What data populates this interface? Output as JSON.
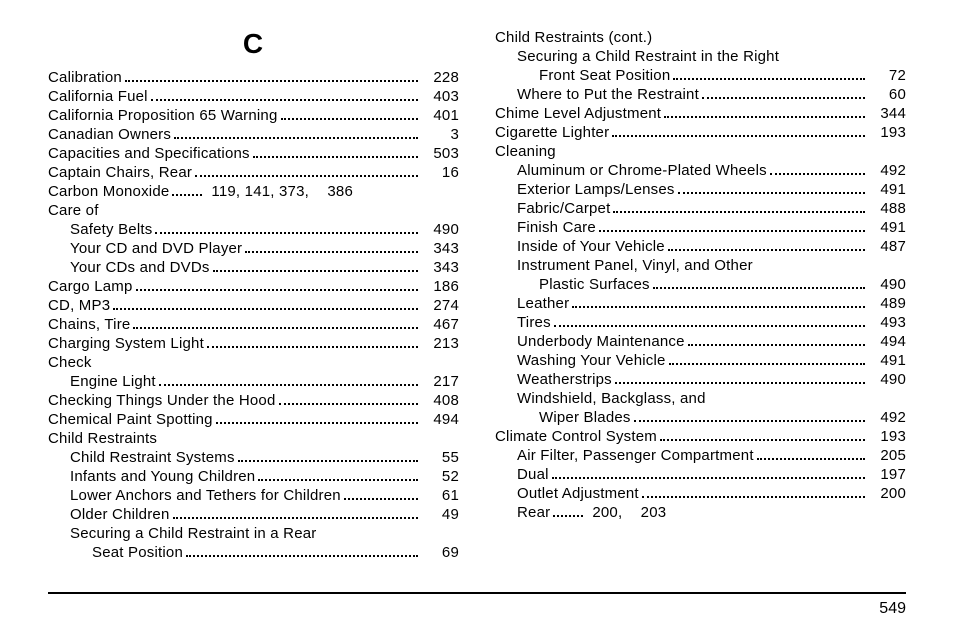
{
  "heading": "C",
  "page_number": "549",
  "left_column": [
    {
      "label": "Calibration",
      "page": "228",
      "indent": 0
    },
    {
      "label": "California Fuel",
      "page": "403",
      "indent": 0
    },
    {
      "label": "California Proposition 65 Warning",
      "page": "401",
      "indent": 0
    },
    {
      "label": "Canadian Owners",
      "page": "3",
      "indent": 0
    },
    {
      "label": "Capacities and Specifications",
      "page": "503",
      "indent": 0
    },
    {
      "label": "Captain Chairs, Rear",
      "page": "16",
      "indent": 0
    },
    {
      "label": "Carbon Monoxide",
      "page": "386",
      "pre_pages": "119,  141,  373,",
      "indent": 0,
      "multi": true
    },
    {
      "label": "Care of",
      "indent": 0,
      "no_page": true
    },
    {
      "label": "Safety Belts",
      "page": "490",
      "indent": 1
    },
    {
      "label": "Your CD and DVD Player",
      "page": "343",
      "indent": 1
    },
    {
      "label": "Your CDs and DVDs",
      "page": "343",
      "indent": 1
    },
    {
      "label": "Cargo Lamp",
      "page": "186",
      "indent": 0
    },
    {
      "label": "CD, MP3",
      "page": "274",
      "indent": 0
    },
    {
      "label": "Chains, Tire",
      "page": "467",
      "indent": 0
    },
    {
      "label": "Charging System Light",
      "page": "213",
      "indent": 0
    },
    {
      "label": "Check",
      "indent": 0,
      "no_page": true
    },
    {
      "label": "Engine Light",
      "page": "217",
      "indent": 1
    },
    {
      "label": "Checking Things Under the Hood",
      "page": "408",
      "indent": 0
    },
    {
      "label": "Chemical Paint Spotting",
      "page": "494",
      "indent": 0
    },
    {
      "label": "Child Restraints",
      "indent": 0,
      "no_page": true
    },
    {
      "label": "Child Restraint Systems",
      "page": "55",
      "indent": 1
    },
    {
      "label": "Infants and Young Children",
      "page": "52",
      "indent": 1
    },
    {
      "label": "Lower Anchors and Tethers for Children",
      "page": "61",
      "indent": 1
    },
    {
      "label": "Older Children",
      "page": "49",
      "indent": 1
    },
    {
      "label": "Securing a Child Restraint in a Rear",
      "indent": 1,
      "no_page": true
    },
    {
      "label": "Seat Position",
      "page": "69",
      "indent": 2
    }
  ],
  "right_column": [
    {
      "label": "Child Restraints (cont.)",
      "indent": 0,
      "no_page": true
    },
    {
      "label": "Securing a Child Restraint in the Right",
      "indent": 1,
      "no_page": true
    },
    {
      "label": "Front Seat Position",
      "page": "72",
      "indent": 2
    },
    {
      "label": "Where to Put the Restraint",
      "page": "60",
      "indent": 1
    },
    {
      "label": "Chime Level Adjustment",
      "page": "344",
      "indent": 0
    },
    {
      "label": "Cigarette Lighter",
      "page": "193",
      "indent": 0
    },
    {
      "label": "Cleaning",
      "indent": 0,
      "no_page": true
    },
    {
      "label": "Aluminum or Chrome-Plated Wheels",
      "page": "492",
      "indent": 1
    },
    {
      "label": "Exterior Lamps/Lenses",
      "page": "491",
      "indent": 1
    },
    {
      "label": "Fabric/Carpet",
      "page": "488",
      "indent": 1
    },
    {
      "label": "Finish Care",
      "page": "491",
      "indent": 1
    },
    {
      "label": "Inside of Your Vehicle",
      "page": "487",
      "indent": 1
    },
    {
      "label": "Instrument Panel, Vinyl, and Other",
      "indent": 1,
      "no_page": true
    },
    {
      "label": "Plastic Surfaces",
      "page": "490",
      "indent": 2
    },
    {
      "label": "Leather",
      "page": "489",
      "indent": 1
    },
    {
      "label": "Tires",
      "page": "493",
      "indent": 1
    },
    {
      "label": "Underbody Maintenance",
      "page": "494",
      "indent": 1
    },
    {
      "label": "Washing Your Vehicle",
      "page": "491",
      "indent": 1
    },
    {
      "label": "Weatherstrips",
      "page": "490",
      "indent": 1
    },
    {
      "label": "Windshield, Backglass, and",
      "indent": 1,
      "no_page": true
    },
    {
      "label": "Wiper Blades",
      "page": "492",
      "indent": 2
    },
    {
      "label": "Climate Control System",
      "page": "193",
      "indent": 0
    },
    {
      "label": "Air Filter, Passenger Compartment",
      "page": "205",
      "indent": 1
    },
    {
      "label": "Dual",
      "page": "197",
      "indent": 1
    },
    {
      "label": "Outlet Adjustment",
      "page": "200",
      "indent": 1
    },
    {
      "label": "Rear",
      "page": "203",
      "pre_pages": "200,",
      "indent": 1,
      "multi": true
    }
  ]
}
